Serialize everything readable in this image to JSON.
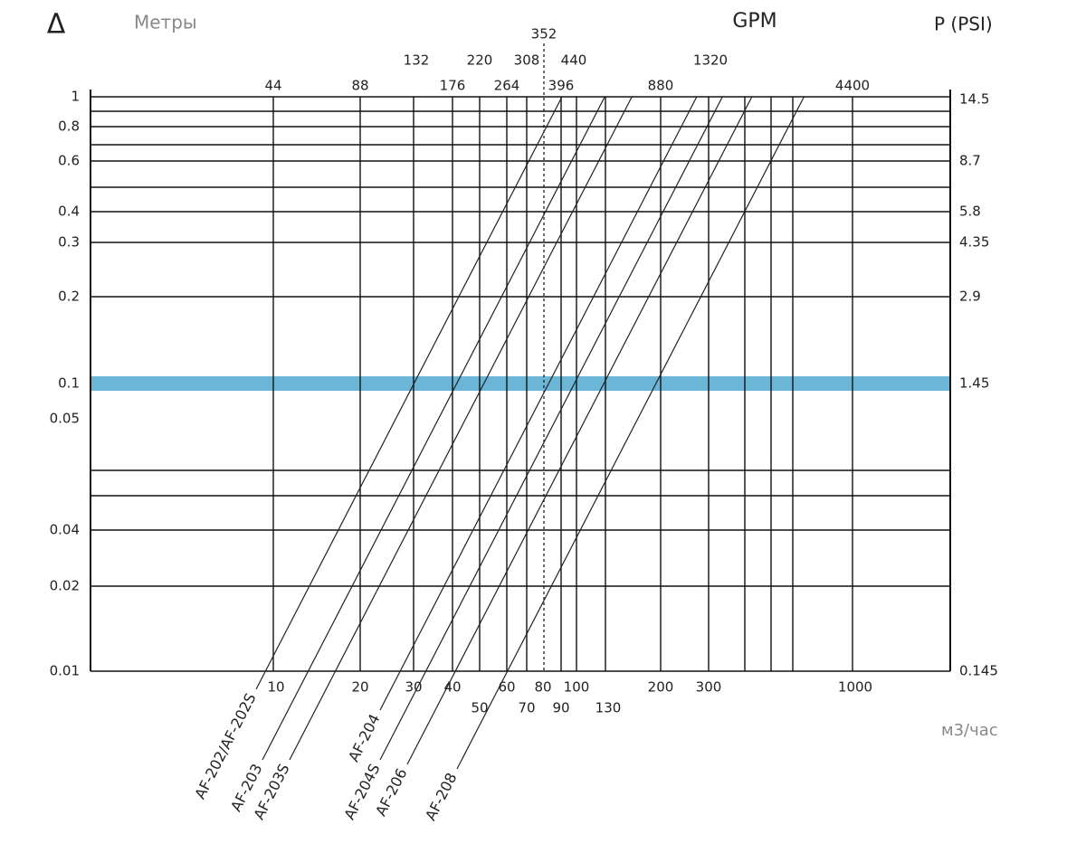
{
  "header": {
    "delta": "Δ",
    "left_unit": "Метры",
    "top_unit": "GPM",
    "right_unit": "P (PSI)"
  },
  "top_scale": {
    "row1": [
      "352"
    ],
    "row2": [
      "132",
      "220",
      "308",
      "440",
      "1320"
    ],
    "row3": [
      "44",
      "88",
      "176",
      "264",
      "396",
      "880",
      "4400"
    ]
  },
  "left_scale": [
    "1",
    "0.8",
    "0.6",
    "0.4",
    "0.3",
    "0.2",
    "0.1",
    "0.05",
    "0.04",
    "0.02",
    "0.01"
  ],
  "right_scale": [
    "14.5",
    "8.7",
    "5.8",
    "4.35",
    "2.9",
    "1.45",
    "0.145"
  ],
  "bottom_scale": {
    "labels": [
      "10",
      "20",
      "30",
      "40",
      "50",
      "60",
      "70",
      "80",
      "90",
      "100",
      "130",
      "200",
      "300",
      "1000"
    ],
    "unit": "м3/час"
  },
  "models": [
    "AF-202/AF-202S",
    "AF-203",
    "AF-203S",
    "AF-204",
    "AF-204S",
    "AF-206",
    "AF-208"
  ]
}
